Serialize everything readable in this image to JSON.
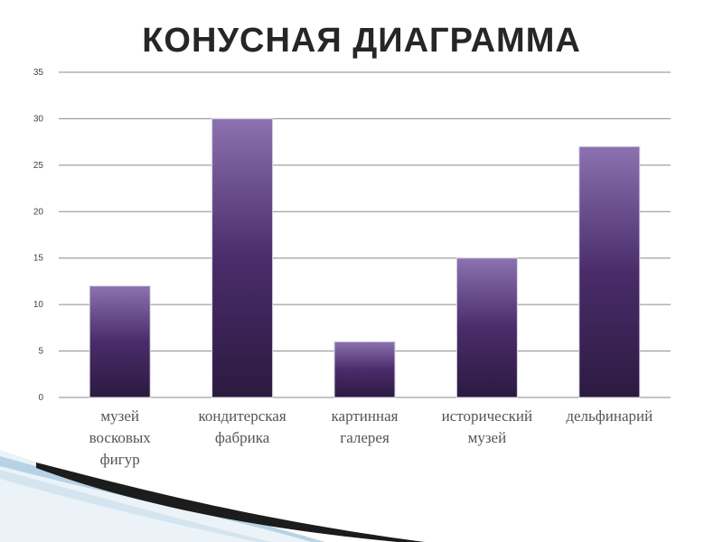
{
  "chart_data": {
    "type": "bar",
    "title": "КОНУСНАЯ ДИАГРАММА",
    "categories": [
      [
        "музей",
        "восковых",
        "фигур"
      ],
      [
        "кондитерская",
        "фабрика"
      ],
      [
        "картинная",
        "галерея"
      ],
      [
        "исторический",
        "музей"
      ],
      [
        "дельфинарий"
      ]
    ],
    "values": [
      12,
      30,
      6,
      15,
      27
    ],
    "ylim": [
      0,
      35
    ],
    "yticks": [
      "0",
      "5",
      "10",
      "15",
      "20",
      "25",
      "30",
      "35"
    ],
    "grid": true,
    "legend": "none",
    "colors": {
      "bar_top": "#8c72b0",
      "bar_mid": "#4a2c6a",
      "bar_bottom": "#2c1a40",
      "grid": "#8a8a8a"
    }
  }
}
